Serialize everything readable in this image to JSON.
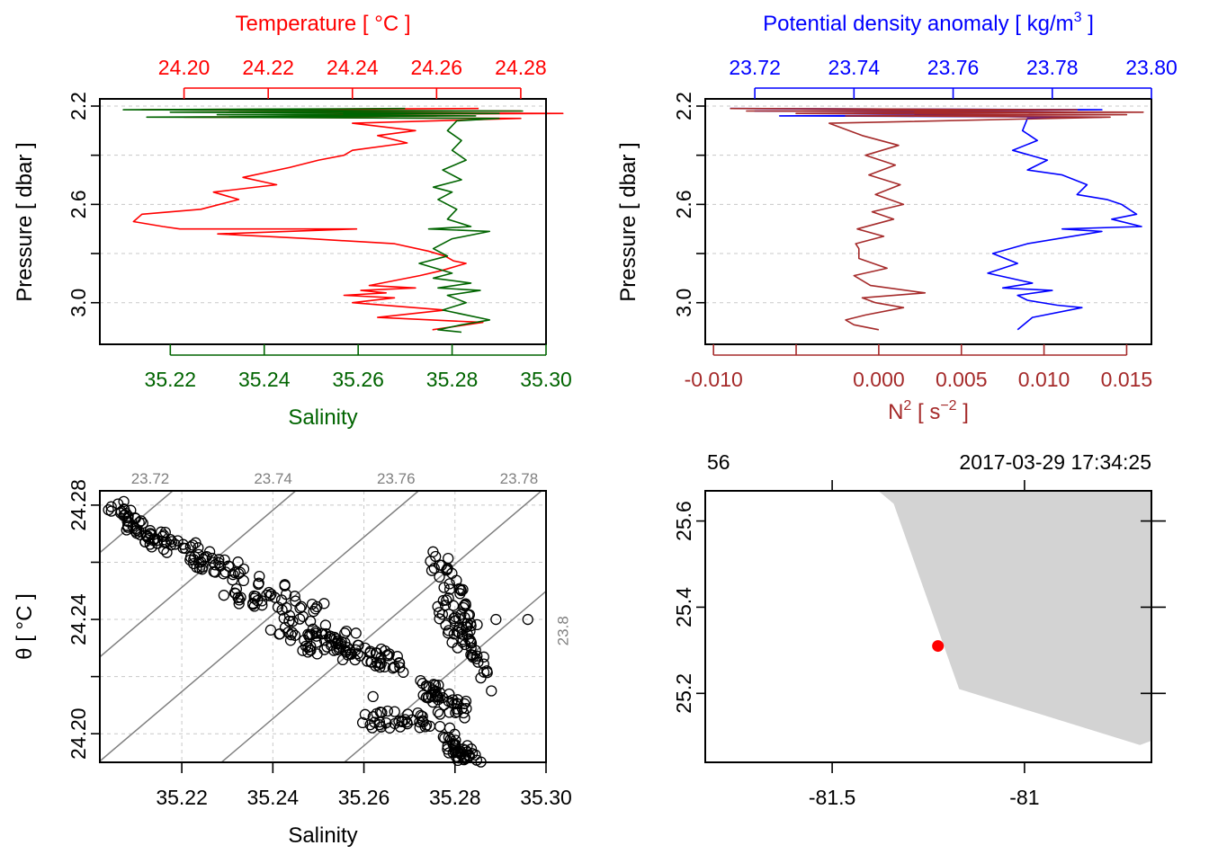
{
  "chart_data": [
    {
      "type": "line",
      "panel": "temperature-salinity-profile",
      "top_axis_label": "Temperature [ °C ]",
      "top_ticks": [
        "24.20",
        "24.22",
        "24.24",
        "24.26",
        "24.28"
      ],
      "top_range": [
        24.18,
        24.286
      ],
      "bottom_axis_label": "Salinity",
      "bottom_ticks": [
        "35.22",
        "35.24",
        "35.26",
        "35.28",
        "35.30"
      ],
      "bottom_range": [
        35.205,
        35.3
      ],
      "ylabel": "Pressure [ dbar ]",
      "y_ticks": [
        "2.2",
        "2.6",
        "3.0"
      ],
      "y_range": [
        2.2,
        3.14
      ],
      "y_reversed": true,
      "grid": true,
      "colors": {
        "temperature": "#ff0000",
        "salinity": "#006400",
        "top_axis": "#ff0000",
        "bottom_axis": "#006400"
      },
      "series": [
        {
          "name": "Temperature",
          "axis": "top",
          "x": [
            24.27,
            24.19,
            24.28,
            24.21,
            24.29,
            24.22,
            24.26,
            24.2,
            24.28,
            24.24,
            24.255,
            24.246,
            24.253,
            24.24,
            24.238,
            24.232,
            24.225,
            24.214,
            24.222,
            24.207,
            24.213,
            24.204,
            24.19,
            24.188,
            24.195,
            24.199,
            24.241,
            24.208,
            24.23,
            24.25,
            24.258,
            24.262,
            24.264,
            24.267,
            24.261,
            24.256,
            24.244,
            24.255,
            24.242,
            24.248,
            24.238,
            24.25,
            24.24,
            24.262,
            24.246,
            24.271,
            24.259
          ],
          "y": [
            2.21,
            2.215,
            2.22,
            2.225,
            2.23,
            2.235,
            2.24,
            2.245,
            2.25,
            2.27,
            2.3,
            2.32,
            2.35,
            2.38,
            2.4,
            2.42,
            2.45,
            2.49,
            2.52,
            2.55,
            2.58,
            2.62,
            2.64,
            2.67,
            2.69,
            2.7,
            2.7,
            2.72,
            2.74,
            2.76,
            2.79,
            2.81,
            2.83,
            2.84,
            2.87,
            2.89,
            2.93,
            2.94,
            2.95,
            2.96,
            2.97,
            2.98,
            3.0,
            3.03,
            3.06,
            3.08,
            3.11
          ]
        },
        {
          "name": "Salinity",
          "axis": "bottom",
          "x": [
            35.27,
            35.21,
            35.295,
            35.22,
            35.29,
            35.23,
            35.285,
            35.215,
            35.29,
            35.281,
            35.279,
            35.282,
            35.28,
            35.283,
            35.278,
            35.282,
            35.276,
            35.28,
            35.277,
            35.281,
            35.279,
            35.284,
            35.275,
            35.288,
            35.28,
            35.276,
            35.279,
            35.273,
            35.28,
            35.276,
            35.284,
            35.277,
            35.286,
            35.279,
            35.283,
            35.278,
            35.288,
            35.282,
            35.277,
            35.282
          ],
          "y": [
            2.21,
            2.215,
            2.22,
            2.225,
            2.23,
            2.235,
            2.24,
            2.245,
            2.25,
            2.26,
            2.3,
            2.34,
            2.38,
            2.42,
            2.46,
            2.5,
            2.53,
            2.55,
            2.58,
            2.62,
            2.66,
            2.69,
            2.7,
            2.71,
            2.74,
            2.78,
            2.81,
            2.84,
            2.88,
            2.9,
            2.92,
            2.94,
            2.95,
            2.97,
            3.0,
            3.03,
            3.07,
            3.09,
            3.11,
            3.12
          ]
        }
      ]
    },
    {
      "type": "line",
      "panel": "density-n2-profile",
      "top_axis_label": "Potential density anomaly [ kg/m",
      "top_axis_label_sup": "3",
      "top_axis_label_end": " ]",
      "top_ticks": [
        "23.72",
        "23.74",
        "23.76",
        "23.78",
        "23.80"
      ],
      "top_range": [
        23.71,
        23.8
      ],
      "bottom_axis_label": "N",
      "bottom_axis_label_sup": "2",
      "bottom_axis_label_mid": " [ s",
      "bottom_axis_label_sup2": "−2",
      "bottom_axis_label_end": " ]",
      "bottom_ticks": [
        "-0.010",
        "",
        "0.000",
        "0.005",
        "0.010",
        "0.015"
      ],
      "bottom_tick_values": [
        -0.01,
        -0.005,
        0.0,
        0.005,
        0.01,
        0.015
      ],
      "bottom_range": [
        -0.0105,
        0.0165
      ],
      "ylabel": "Pressure [ dbar ]",
      "y_ticks": [
        "2.2",
        "2.6",
        "3.0"
      ],
      "y_range": [
        2.2,
        3.14
      ],
      "y_reversed": true,
      "grid": true,
      "colors": {
        "density": "#0000ff",
        "n2": "#a52a2a",
        "top_axis": "#0000ff",
        "bottom_axis": "#a52a2a"
      },
      "series": [
        {
          "name": "Potential density anomaly",
          "axis": "top",
          "x": [
            23.715,
            23.79,
            23.72,
            23.785,
            23.74,
            23.78,
            23.725,
            23.79,
            23.775,
            23.774,
            23.777,
            23.772,
            23.779,
            23.775,
            23.782,
            23.787,
            23.785,
            23.791,
            23.794,
            23.797,
            23.792,
            23.798,
            23.782,
            23.79,
            23.775,
            23.768,
            23.773,
            23.767,
            23.776,
            23.77,
            23.78,
            23.773,
            23.775,
            23.781,
            23.786,
            23.776,
            23.773
          ],
          "y": [
            2.21,
            2.215,
            2.22,
            2.225,
            2.23,
            2.235,
            2.24,
            2.245,
            2.25,
            2.3,
            2.34,
            2.38,
            2.42,
            2.46,
            2.48,
            2.52,
            2.56,
            2.58,
            2.6,
            2.64,
            2.66,
            2.69,
            2.7,
            2.71,
            2.76,
            2.8,
            2.84,
            2.88,
            2.92,
            2.94,
            2.95,
            2.97,
            2.99,
            3.01,
            3.02,
            3.06,
            3.11
          ]
        },
        {
          "name": "N2",
          "axis": "bottom",
          "x": [
            -0.009,
            0.012,
            -0.008,
            0.016,
            -0.005,
            0.015,
            -0.002,
            0.014,
            -0.003,
            -0.001,
            0.0012,
            -0.0008,
            0.001,
            -0.0006,
            0.0013,
            -0.0002,
            0.0015,
            -0.0004,
            0.0009,
            -0.0013,
            0.0003,
            -0.0014,
            -0.0012,
            -0.0012,
            0.0005,
            -0.0015,
            -0.0005,
            0.0028,
            -0.001,
            -0.0002,
            0.0015,
            -0.0008,
            -0.002,
            -0.0015,
            0.0
          ],
          "y": [
            2.21,
            2.215,
            2.22,
            2.225,
            2.23,
            2.235,
            2.24,
            2.245,
            2.27,
            2.32,
            2.36,
            2.4,
            2.44,
            2.48,
            2.52,
            2.56,
            2.6,
            2.63,
            2.66,
            2.7,
            2.73,
            2.76,
            2.78,
            2.82,
            2.86,
            2.89,
            2.93,
            2.96,
            2.98,
            3.0,
            3.02,
            3.05,
            3.07,
            3.09,
            3.11
          ]
        }
      ]
    },
    {
      "type": "scatter",
      "panel": "ts-diagram",
      "xlabel": "Salinity",
      "ylabel": "θ [ °C ]",
      "x_ticks": [
        "35.22",
        "35.24",
        "35.26",
        "35.28",
        "35.30"
      ],
      "x_range": [
        35.202,
        35.3
      ],
      "y_ticks": [
        "24.20",
        "24.24",
        "24.28"
      ],
      "y_minor_ticks": [
        24.22,
        24.26
      ],
      "y_range": [
        24.19,
        24.285
      ],
      "grid": true,
      "isopycnal_labels": [
        "23.72",
        "23.74",
        "23.76",
        "23.78",
        "23.8"
      ],
      "isopycnal_color": "#808080",
      "clusters": [
        {
          "x0": 35.205,
          "y0": 24.279,
          "x1": 35.215,
          "y1": 24.268
        },
        {
          "x0": 35.212,
          "y0": 24.27,
          "x1": 35.232,
          "y1": 24.258
        },
        {
          "x0": 35.222,
          "y0": 24.262,
          "x1": 35.25,
          "y1": 24.244
        },
        {
          "x0": 35.23,
          "y0": 24.25,
          "x1": 35.258,
          "y1": 24.232
        },
        {
          "x0": 35.245,
          "y0": 24.232,
          "x1": 35.27,
          "y1": 24.224
        },
        {
          "x0": 35.24,
          "y0": 24.238,
          "x1": 35.265,
          "y1": 24.226
        },
        {
          "x0": 35.276,
          "y0": 24.262,
          "x1": 35.284,
          "y1": 24.234
        },
        {
          "x0": 35.277,
          "y0": 24.245,
          "x1": 35.286,
          "y1": 24.222
        },
        {
          "x0": 35.274,
          "y0": 24.216,
          "x1": 35.282,
          "y1": 24.208
        },
        {
          "x0": 35.26,
          "y0": 24.205,
          "x1": 35.278,
          "y1": 24.205
        },
        {
          "x0": 35.279,
          "y0": 24.198,
          "x1": 35.284,
          "y1": 24.19
        }
      ],
      "outliers": [
        [
          35.296,
          24.24
        ],
        [
          35.289,
          24.24
        ],
        [
          35.288,
          24.215
        ],
        [
          35.287,
          24.222
        ],
        [
          35.262,
          24.213
        ]
      ]
    },
    {
      "type": "map",
      "panel": "station-map",
      "x_ticks": [
        "-81.5",
        "-81"
      ],
      "x_range": [
        -81.83,
        -80.67
      ],
      "y_ticks": [
        "25.2",
        "25.4",
        "25.6"
      ],
      "y_range": [
        25.04,
        25.67
      ],
      "top_left_label": "56",
      "top_right_label": "2017-03-29 17:34:25",
      "station": {
        "lon": -81.225,
        "lat": 25.31
      },
      "land_polygon": [
        [
          -81.38,
          25.67
        ],
        [
          -81.34,
          25.64
        ],
        [
          -81.17,
          25.21
        ],
        [
          -80.7,
          25.08
        ],
        [
          -80.67,
          25.09
        ],
        [
          -80.67,
          25.67
        ]
      ],
      "colors": {
        "land": "#d3d3d3",
        "station": "#ff0000"
      }
    }
  ]
}
